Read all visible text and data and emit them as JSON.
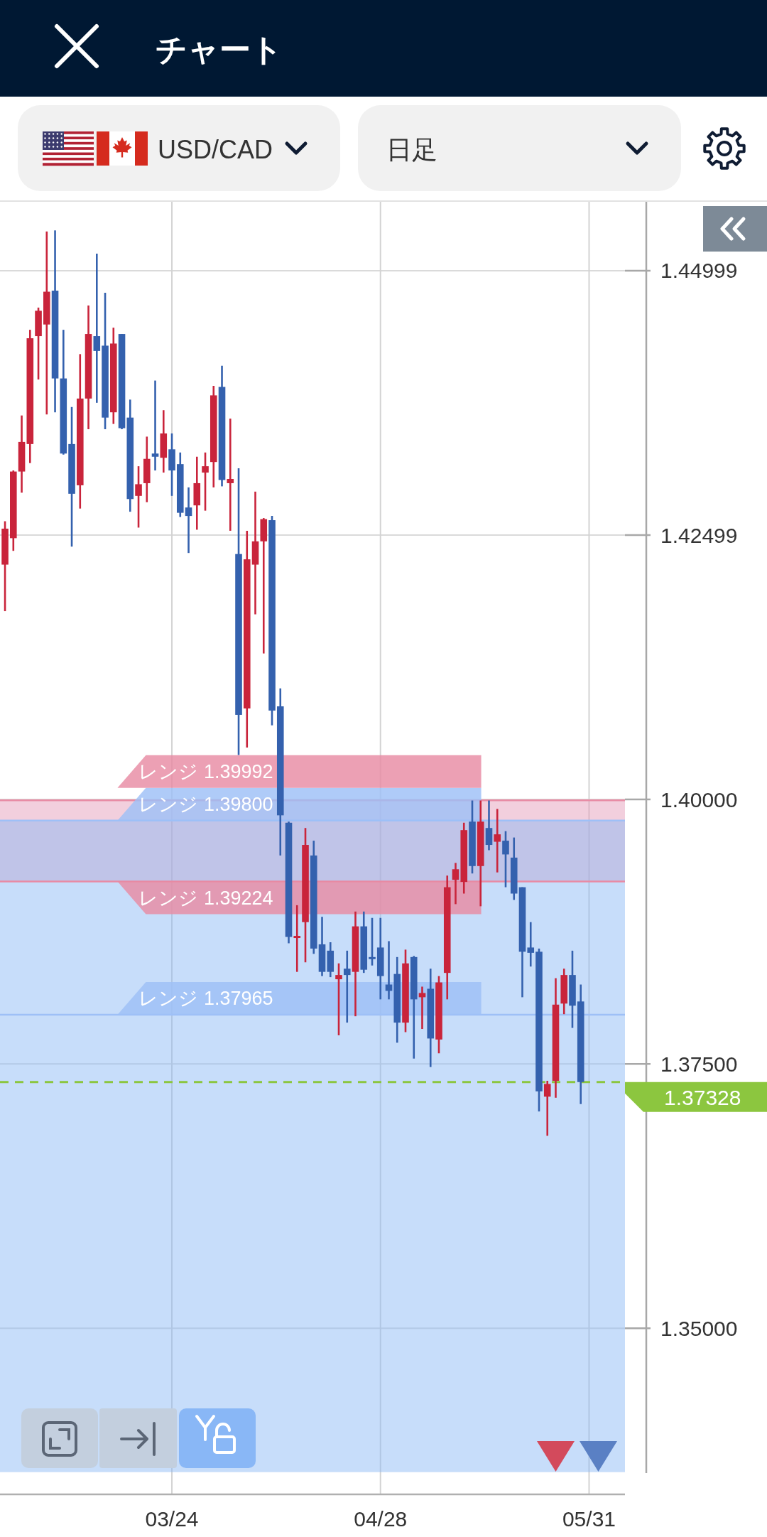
{
  "chart_data": {
    "type": "candlestick",
    "title": "チャート",
    "subtitle": "USD/CAD",
    "annotations": [
      "日足"
    ],
    "categories": [
      null,
      null,
      null,
      null,
      null,
      null,
      null,
      null,
      null,
      null,
      null,
      null,
      null,
      null,
      null,
      null,
      null,
      null,
      null,
      null,
      "03/24",
      null,
      null,
      null,
      null,
      null,
      null,
      null,
      null,
      null,
      null,
      null,
      null,
      null,
      null,
      null,
      null,
      null,
      null,
      null,
      null,
      null,
      null,
      null,
      null,
      "04/28",
      null,
      null,
      null,
      null,
      null,
      null,
      null,
      null,
      null,
      null,
      null,
      null,
      null,
      null,
      null,
      null,
      null,
      null,
      null,
      null,
      null,
      null,
      null,
      null,
      "05/31"
    ],
    "ohlc": [
      [
        1.4222,
        1.4263,
        1.4178,
        1.4256
      ],
      [
        1.4247,
        1.4311,
        1.4235,
        1.431
      ],
      [
        1.431,
        1.4363,
        1.429,
        1.4338
      ],
      [
        1.4336,
        1.4444,
        1.4318,
        1.4436
      ],
      [
        1.4438,
        1.4465,
        1.4397,
        1.4462
      ],
      [
        1.4449,
        1.4537,
        1.4364,
        1.448
      ],
      [
        1.4481,
        1.4538,
        1.4366,
        1.4398
      ],
      [
        1.4398,
        1.4444,
        1.4326,
        1.4327
      ],
      [
        1.4336,
        1.4371,
        1.4239,
        1.4289
      ],
      [
        1.4297,
        1.4421,
        1.4275,
        1.4379
      ],
      [
        1.4379,
        1.4467,
        1.435,
        1.444
      ],
      [
        1.4438,
        1.4516,
        1.4375,
        1.4424
      ],
      [
        1.4429,
        1.4479,
        1.435,
        1.4361
      ],
      [
        1.4366,
        1.4446,
        1.4355,
        1.4431
      ],
      [
        1.444,
        1.444,
        1.435,
        1.4351
      ],
      [
        1.4361,
        1.4378,
        1.4272,
        1.4284
      ],
      [
        1.4287,
        1.4315,
        1.4257,
        1.4298
      ],
      [
        1.4299,
        1.4343,
        1.4281,
        1.4322
      ],
      [
        1.4327,
        1.4396,
        1.4311,
        1.4324
      ],
      [
        1.4323,
        1.4368,
        1.4309,
        1.4346
      ],
      [
        1.4331,
        1.4346,
        1.4287,
        1.4311
      ],
      [
        1.4317,
        1.4328,
        1.4267,
        1.4271
      ],
      [
        1.4276,
        1.4295,
        1.4233,
        1.4268
      ],
      [
        1.4278,
        1.4324,
        1.4255,
        1.4299
      ],
      [
        1.4309,
        1.4328,
        1.4273,
        1.4315
      ],
      [
        1.4319,
        1.4391,
        1.4295,
        1.4382
      ],
      [
        1.439,
        1.441,
        1.4296,
        1.4302
      ],
      [
        1.4299,
        1.436,
        1.4254,
        1.4303
      ],
      [
        1.4232,
        1.4313,
        1.4042,
        1.408
      ],
      [
        1.4086,
        1.4254,
        1.4049,
        1.4227
      ],
      [
        1.4222,
        1.4291,
        1.4175,
        1.4244
      ],
      [
        1.4244,
        1.4266,
        1.4138,
        1.4265
      ],
      [
        1.4264,
        1.4268,
        1.407,
        1.4084
      ],
      [
        1.4088,
        1.4105,
        1.3947,
        1.3985
      ],
      [
        1.3978,
        1.3979,
        1.3864,
        1.387
      ],
      [
        1.3869,
        1.39,
        1.3837,
        1.3871
      ],
      [
        1.3884,
        1.3973,
        1.3846,
        1.3957
      ],
      [
        1.3947,
        1.3961,
        1.3854,
        1.3859
      ],
      [
        1.3863,
        1.3889,
        1.3833,
        1.3837
      ],
      [
        1.3857,
        1.3865,
        1.3832,
        1.3837
      ],
      [
        1.383,
        1.3845,
        1.3777,
        1.3834
      ],
      [
        1.384,
        1.3857,
        1.3789,
        1.3834
      ],
      [
        1.3837,
        1.3894,
        1.3795,
        1.388
      ],
      [
        1.388,
        1.3894,
        1.3836,
        1.3839
      ],
      [
        1.3851,
        1.3888,
        1.3843,
        1.3849
      ],
      [
        1.386,
        1.3888,
        1.3811,
        1.3833
      ],
      [
        1.3825,
        1.3866,
        1.3811,
        1.3819
      ],
      [
        1.3835,
        1.3851,
        1.377,
        1.3789
      ],
      [
        1.3789,
        1.3858,
        1.378,
        1.3845
      ],
      [
        1.3851,
        1.3852,
        1.3755,
        1.3811
      ],
      [
        1.3813,
        1.3823,
        1.3783,
        1.3817
      ],
      [
        1.3821,
        1.384,
        1.3747,
        1.3774
      ],
      [
        1.3773,
        1.3833,
        1.376,
        1.3827
      ],
      [
        1.3836,
        1.3928,
        1.3811,
        1.3917
      ],
      [
        1.3924,
        1.394,
        1.3901,
        1.3934
      ],
      [
        1.3922,
        1.3978,
        1.3911,
        1.3971
      ],
      [
        1.3979,
        1.3999,
        1.393,
        1.3937
      ],
      [
        1.3937,
        1.3999,
        1.3899,
        1.3979
      ],
      [
        1.3973,
        1.3999,
        1.3952,
        1.3957
      ],
      [
        1.396,
        1.3991,
        1.3931,
        1.3967
      ],
      [
        1.3961,
        1.397,
        1.3917,
        1.3948
      ],
      [
        1.3945,
        1.3964,
        1.3905,
        1.3911
      ],
      [
        1.3917,
        1.3917,
        1.3813,
        1.3856
      ],
      [
        1.386,
        1.3884,
        1.3842,
        1.3855
      ],
      [
        1.3856,
        1.3859,
        1.3705,
        1.3724
      ],
      [
        1.3719,
        1.3734,
        1.3682,
        1.3731
      ],
      [
        1.3734,
        1.3831,
        1.3718,
        1.3806
      ],
      [
        1.3807,
        1.384,
        1.3797,
        1.3834
      ],
      [
        1.3834,
        1.3857,
        1.3784,
        1.3805
      ],
      [
        1.3809,
        1.3825,
        1.3712,
        1.37328
      ],
      null
    ],
    "ylim": [
      1.3343,
      1.4565
    ],
    "yticks": [
      {
        "value": 1.35,
        "label": "1.35000"
      },
      {
        "value": 1.375,
        "label": "1.37500"
      },
      {
        "value": 1.4,
        "label": "1.40000"
      },
      1.42499,
      1.44999
    ],
    "grid": true,
    "bands": [
      {
        "axis": "y",
        "from": 1.39224,
        "to": 1.39992,
        "color": "#e39ab8"
      },
      {
        "axis": "y",
        "from": 1.3364,
        "to": 1.398,
        "color": "#8ab8f5"
      }
    ],
    "ref_lines": [
      {
        "axis": "y",
        "value": 1.39992,
        "label": "レンジ 1.39992",
        "color": "#e88ba4"
      },
      {
        "axis": "y",
        "value": 1.398,
        "label": "レンジ 1.39800",
        "color": "#9ec0f7"
      },
      {
        "axis": "y",
        "value": 1.39224,
        "label": "レンジ 1.39224",
        "color": "#e88ba4"
      },
      {
        "axis": "y",
        "value": 1.37965,
        "label": "レンジ 1.37965",
        "color": "#9ec0f7"
      },
      {
        "axis": "y",
        "value": 1.37328,
        "label": "1.37328",
        "color": "#8cc63f",
        "line_style": "dashed"
      }
    ]
  }
}
